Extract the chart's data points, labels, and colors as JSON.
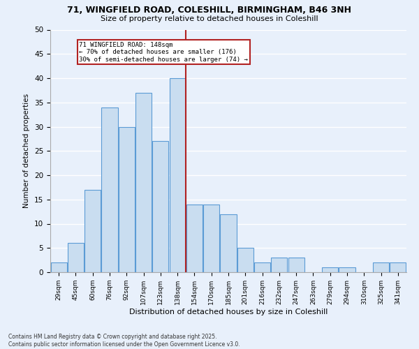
{
  "title1": "71, WINGFIELD ROAD, COLESHILL, BIRMINGHAM, B46 3NH",
  "title2": "Size of property relative to detached houses in Coleshill",
  "xlabel": "Distribution of detached houses by size in Coleshill",
  "ylabel": "Number of detached properties",
  "bar_labels": [
    "29sqm",
    "45sqm",
    "60sqm",
    "76sqm",
    "92sqm",
    "107sqm",
    "123sqm",
    "138sqm",
    "154sqm",
    "170sqm",
    "185sqm",
    "201sqm",
    "216sqm",
    "232sqm",
    "247sqm",
    "263sqm",
    "279sqm",
    "294sqm",
    "310sqm",
    "325sqm",
    "341sqm"
  ],
  "bar_values": [
    2,
    6,
    17,
    34,
    30,
    37,
    27,
    40,
    14,
    14,
    12,
    5,
    2,
    3,
    3,
    0,
    1,
    1,
    0,
    2,
    2
  ],
  "bar_color": "#c9ddf0",
  "bar_edge_color": "#5b9bd5",
  "background_color": "#e8f0fb",
  "grid_color": "#ffffff",
  "vline_color": "#b22222",
  "annotation_title": "71 WINGFIELD ROAD: 148sqm",
  "annotation_line1": "← 70% of detached houses are smaller (176)",
  "annotation_line2": "30% of semi-detached houses are larger (74) →",
  "annotation_box_color": "#b22222",
  "ylim": [
    0,
    50
  ],
  "yticks": [
    0,
    5,
    10,
    15,
    20,
    25,
    30,
    35,
    40,
    45,
    50
  ],
  "footnote1": "Contains HM Land Registry data © Crown copyright and database right 2025.",
  "footnote2": "Contains public sector information licensed under the Open Government Licence v3.0."
}
